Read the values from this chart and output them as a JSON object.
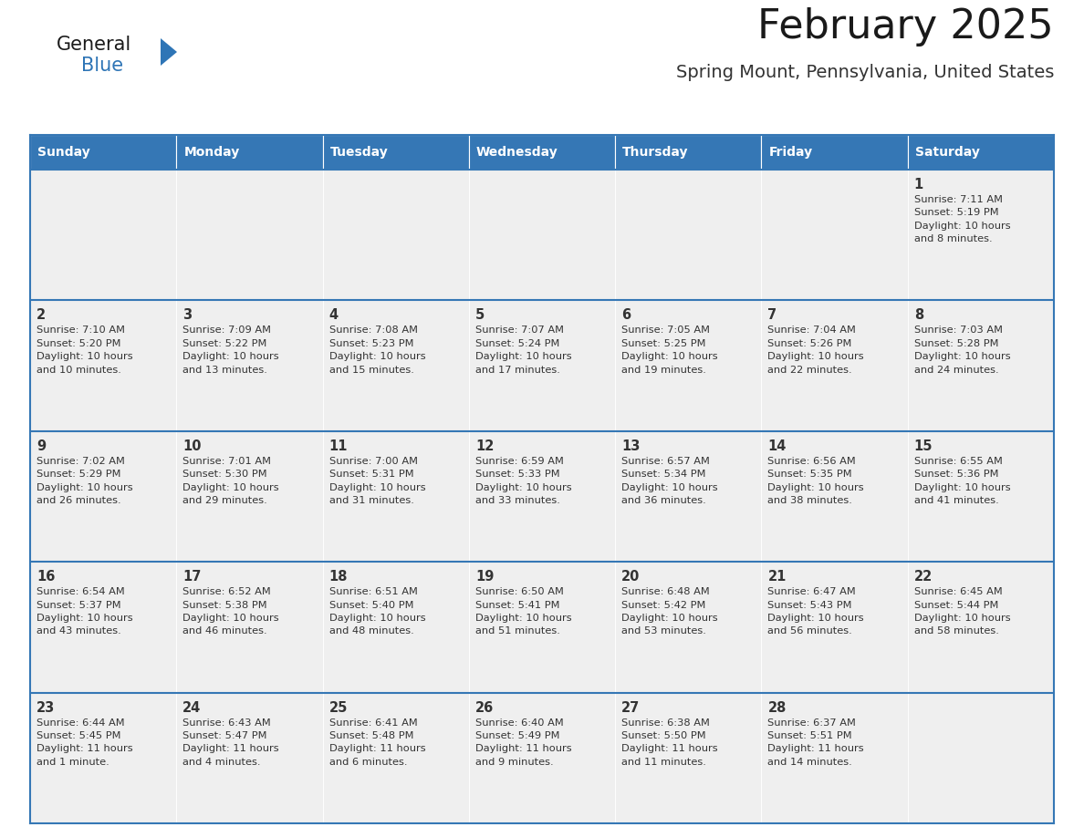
{
  "title": "February 2025",
  "subtitle": "Spring Mount, Pennsylvania, United States",
  "days_of_week": [
    "Sunday",
    "Monday",
    "Tuesday",
    "Wednesday",
    "Thursday",
    "Friday",
    "Saturday"
  ],
  "header_bg": "#3577b5",
  "header_text_color": "#ffffff",
  "cell_bg": "#efefef",
  "border_color": "#3577b5",
  "text_color": "#333333",
  "title_color": "#1a1a1a",
  "subtitle_color": "#333333",
  "logo_general_color": "#1a1a1a",
  "logo_blue_color": "#2e75b6",
  "calendar_data": [
    [
      {
        "day": "",
        "info": ""
      },
      {
        "day": "",
        "info": ""
      },
      {
        "day": "",
        "info": ""
      },
      {
        "day": "",
        "info": ""
      },
      {
        "day": "",
        "info": ""
      },
      {
        "day": "",
        "info": ""
      },
      {
        "day": "1",
        "info": "Sunrise: 7:11 AM\nSunset: 5:19 PM\nDaylight: 10 hours\nand 8 minutes."
      }
    ],
    [
      {
        "day": "2",
        "info": "Sunrise: 7:10 AM\nSunset: 5:20 PM\nDaylight: 10 hours\nand 10 minutes."
      },
      {
        "day": "3",
        "info": "Sunrise: 7:09 AM\nSunset: 5:22 PM\nDaylight: 10 hours\nand 13 minutes."
      },
      {
        "day": "4",
        "info": "Sunrise: 7:08 AM\nSunset: 5:23 PM\nDaylight: 10 hours\nand 15 minutes."
      },
      {
        "day": "5",
        "info": "Sunrise: 7:07 AM\nSunset: 5:24 PM\nDaylight: 10 hours\nand 17 minutes."
      },
      {
        "day": "6",
        "info": "Sunrise: 7:05 AM\nSunset: 5:25 PM\nDaylight: 10 hours\nand 19 minutes."
      },
      {
        "day": "7",
        "info": "Sunrise: 7:04 AM\nSunset: 5:26 PM\nDaylight: 10 hours\nand 22 minutes."
      },
      {
        "day": "8",
        "info": "Sunrise: 7:03 AM\nSunset: 5:28 PM\nDaylight: 10 hours\nand 24 minutes."
      }
    ],
    [
      {
        "day": "9",
        "info": "Sunrise: 7:02 AM\nSunset: 5:29 PM\nDaylight: 10 hours\nand 26 minutes."
      },
      {
        "day": "10",
        "info": "Sunrise: 7:01 AM\nSunset: 5:30 PM\nDaylight: 10 hours\nand 29 minutes."
      },
      {
        "day": "11",
        "info": "Sunrise: 7:00 AM\nSunset: 5:31 PM\nDaylight: 10 hours\nand 31 minutes."
      },
      {
        "day": "12",
        "info": "Sunrise: 6:59 AM\nSunset: 5:33 PM\nDaylight: 10 hours\nand 33 minutes."
      },
      {
        "day": "13",
        "info": "Sunrise: 6:57 AM\nSunset: 5:34 PM\nDaylight: 10 hours\nand 36 minutes."
      },
      {
        "day": "14",
        "info": "Sunrise: 6:56 AM\nSunset: 5:35 PM\nDaylight: 10 hours\nand 38 minutes."
      },
      {
        "day": "15",
        "info": "Sunrise: 6:55 AM\nSunset: 5:36 PM\nDaylight: 10 hours\nand 41 minutes."
      }
    ],
    [
      {
        "day": "16",
        "info": "Sunrise: 6:54 AM\nSunset: 5:37 PM\nDaylight: 10 hours\nand 43 minutes."
      },
      {
        "day": "17",
        "info": "Sunrise: 6:52 AM\nSunset: 5:38 PM\nDaylight: 10 hours\nand 46 minutes."
      },
      {
        "day": "18",
        "info": "Sunrise: 6:51 AM\nSunset: 5:40 PM\nDaylight: 10 hours\nand 48 minutes."
      },
      {
        "day": "19",
        "info": "Sunrise: 6:50 AM\nSunset: 5:41 PM\nDaylight: 10 hours\nand 51 minutes."
      },
      {
        "day": "20",
        "info": "Sunrise: 6:48 AM\nSunset: 5:42 PM\nDaylight: 10 hours\nand 53 minutes."
      },
      {
        "day": "21",
        "info": "Sunrise: 6:47 AM\nSunset: 5:43 PM\nDaylight: 10 hours\nand 56 minutes."
      },
      {
        "day": "22",
        "info": "Sunrise: 6:45 AM\nSunset: 5:44 PM\nDaylight: 10 hours\nand 58 minutes."
      }
    ],
    [
      {
        "day": "23",
        "info": "Sunrise: 6:44 AM\nSunset: 5:45 PM\nDaylight: 11 hours\nand 1 minute."
      },
      {
        "day": "24",
        "info": "Sunrise: 6:43 AM\nSunset: 5:47 PM\nDaylight: 11 hours\nand 4 minutes."
      },
      {
        "day": "25",
        "info": "Sunrise: 6:41 AM\nSunset: 5:48 PM\nDaylight: 11 hours\nand 6 minutes."
      },
      {
        "day": "26",
        "info": "Sunrise: 6:40 AM\nSunset: 5:49 PM\nDaylight: 11 hours\nand 9 minutes."
      },
      {
        "day": "27",
        "info": "Sunrise: 6:38 AM\nSunset: 5:50 PM\nDaylight: 11 hours\nand 11 minutes."
      },
      {
        "day": "28",
        "info": "Sunrise: 6:37 AM\nSunset: 5:51 PM\nDaylight: 11 hours\nand 14 minutes."
      },
      {
        "day": "",
        "info": ""
      }
    ]
  ]
}
